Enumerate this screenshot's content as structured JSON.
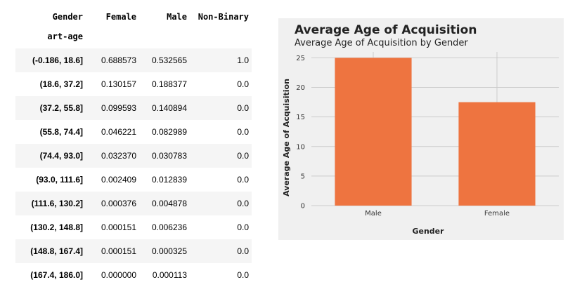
{
  "table": {
    "columns_header": "Gender",
    "columns": [
      "Female",
      "Male",
      "Non-Binary"
    ],
    "index_name": "art-age",
    "rows": [
      {
        "index": "(-0.186, 18.6]",
        "female": "0.688573",
        "male": "0.532565",
        "nonbinary": "1.0"
      },
      {
        "index": "(18.6, 37.2]",
        "female": "0.130157",
        "male": "0.188377",
        "nonbinary": "0.0"
      },
      {
        "index": "(37.2, 55.8]",
        "female": "0.099593",
        "male": "0.140894",
        "nonbinary": "0.0"
      },
      {
        "index": "(55.8, 74.4]",
        "female": "0.046221",
        "male": "0.082989",
        "nonbinary": "0.0"
      },
      {
        "index": "(74.4, 93.0]",
        "female": "0.032370",
        "male": "0.030783",
        "nonbinary": "0.0"
      },
      {
        "index": "(93.0, 111.6]",
        "female": "0.002409",
        "male": "0.012839",
        "nonbinary": "0.0"
      },
      {
        "index": "(111.6, 130.2]",
        "female": "0.000376",
        "male": "0.004878",
        "nonbinary": "0.0"
      },
      {
        "index": "(130.2, 148.8]",
        "female": "0.000151",
        "male": "0.006236",
        "nonbinary": "0.0"
      },
      {
        "index": "(148.8, 167.4]",
        "female": "0.000151",
        "male": "0.000325",
        "nonbinary": "0.0"
      },
      {
        "index": "(167.4, 186.0]",
        "female": "0.000000",
        "male": "0.000113",
        "nonbinary": "0.0"
      }
    ]
  },
  "chart_data": {
    "type": "bar",
    "title": "Average Age of Acquisition",
    "subtitle": "Average Age of Acquisition by Gender",
    "xlabel": "Gender",
    "ylabel": "Average Age of Acquisition",
    "categories": [
      "Male",
      "Female"
    ],
    "values": [
      25.0,
      17.5
    ],
    "ylim": [
      0,
      26
    ],
    "yticks": [
      0,
      5,
      10,
      15,
      20,
      25
    ],
    "grid": true,
    "bar_color": "#ee7440",
    "background_color": "#f0f0f0"
  }
}
